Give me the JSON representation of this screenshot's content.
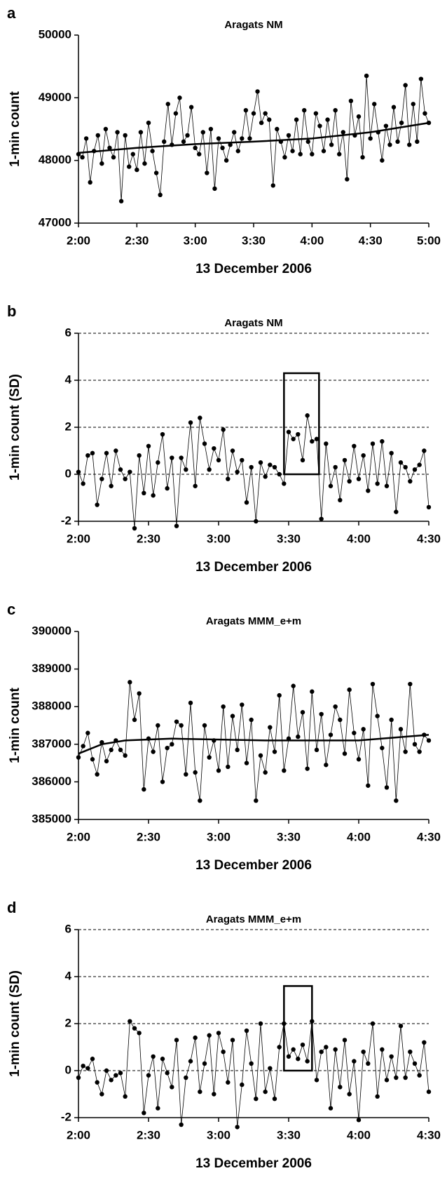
{
  "chart_data": [
    {
      "type": "line",
      "panel": "a",
      "title": "Aragats NM",
      "x_label": "13 December 2006",
      "y_label": "1-min count",
      "xlim": [
        0,
        180
      ],
      "xticks": [
        {
          "value": 0,
          "label": "2:00"
        },
        {
          "value": 30,
          "label": "2:30"
        },
        {
          "value": 60,
          "label": "3:00"
        },
        {
          "value": 90,
          "label": "3:30"
        },
        {
          "value": 120,
          "label": "4:00"
        },
        {
          "value": 150,
          "label": "4:30"
        },
        {
          "value": 180,
          "label": "5:00"
        }
      ],
      "ylim": [
        47000,
        50000
      ],
      "yticks": [
        47000,
        48000,
        49000,
        50000
      ],
      "grid": false,
      "series": [
        {
          "color": "#000000",
          "markers": true,
          "line_width": 0.8,
          "x": [
            0,
            2,
            4,
            6,
            8,
            10,
            12,
            14,
            16,
            18,
            20,
            22,
            24,
            26,
            28,
            30,
            32,
            34,
            36,
            38,
            40,
            42,
            44,
            46,
            48,
            50,
            52,
            54,
            56,
            58,
            60,
            62,
            64,
            66,
            68,
            70,
            72,
            74,
            76,
            78,
            80,
            82,
            84,
            86,
            88,
            90,
            92,
            94,
            96,
            98,
            100,
            102,
            104,
            106,
            108,
            110,
            112,
            114,
            116,
            118,
            120,
            122,
            124,
            126,
            128,
            130,
            132,
            134,
            136,
            138,
            140,
            142,
            144,
            146,
            148,
            150,
            152,
            154,
            156,
            158,
            160,
            162,
            164,
            166,
            168,
            170,
            172,
            174,
            176,
            178,
            180
          ],
          "values": [
            48100,
            48050,
            48350,
            47650,
            48150,
            48400,
            47950,
            48500,
            48200,
            48050,
            48450,
            47350,
            48400,
            47900,
            48100,
            47850,
            48450,
            47950,
            48600,
            48150,
            47800,
            47450,
            48300,
            48900,
            48250,
            48750,
            49000,
            48300,
            48400,
            48850,
            48200,
            48100,
            48450,
            47800,
            48500,
            47550,
            48350,
            48200,
            48000,
            48250,
            48450,
            48150,
            48350,
            48800,
            48350,
            48750,
            49100,
            48600,
            48750,
            48650,
            47600,
            48500,
            48300,
            48050,
            48400,
            48150,
            48650,
            48100,
            48800,
            48300,
            48100,
            48750,
            48550,
            48150,
            48650,
            48250,
            48800,
            48100,
            48450,
            47700,
            48950,
            48400,
            48700,
            48050,
            49350,
            48350,
            48900,
            48450,
            48000,
            48550,
            48250,
            48850,
            48300,
            48600,
            49200,
            48250,
            48900,
            48300,
            49300,
            48750,
            48600
          ]
        },
        {
          "color": "#000000",
          "markers": false,
          "line_width": 2.5,
          "x": [
            0,
            30,
            60,
            90,
            120,
            150,
            180
          ],
          "values": [
            48120,
            48200,
            48260,
            48300,
            48350,
            48450,
            48600
          ]
        }
      ]
    },
    {
      "type": "line",
      "panel": "b",
      "title": "Aragats NM",
      "x_label": "13 December 2006",
      "y_label": "1-min count (SD)",
      "xlim": [
        0,
        150
      ],
      "xticks": [
        {
          "value": 0,
          "label": "2:00"
        },
        {
          "value": 30,
          "label": "2:30"
        },
        {
          "value": 60,
          "label": "3:00"
        },
        {
          "value": 90,
          "label": "3:30"
        },
        {
          "value": 120,
          "label": "4:00"
        },
        {
          "value": 150,
          "label": "4:30"
        }
      ],
      "ylim": [
        -2,
        6
      ],
      "yticks": [
        -2,
        0,
        2,
        4,
        6
      ],
      "grid": true,
      "highlight": {
        "x": [
          88,
          103
        ],
        "y": [
          0,
          4.3
        ]
      },
      "series": [
        {
          "color": "#000000",
          "markers": true,
          "line_width": 0.8,
          "x": [
            0,
            2,
            4,
            6,
            8,
            10,
            12,
            14,
            16,
            18,
            20,
            22,
            24,
            26,
            28,
            30,
            32,
            34,
            36,
            38,
            40,
            42,
            44,
            46,
            48,
            50,
            52,
            54,
            56,
            58,
            60,
            62,
            64,
            66,
            68,
            70,
            72,
            74,
            76,
            78,
            80,
            82,
            84,
            86,
            88,
            90,
            92,
            94,
            96,
            98,
            100,
            102,
            104,
            106,
            108,
            110,
            112,
            114,
            116,
            118,
            120,
            122,
            124,
            126,
            128,
            130,
            132,
            134,
            136,
            138,
            140,
            142,
            144,
            146,
            148,
            150
          ],
          "values": [
            0.1,
            -0.4,
            0.8,
            0.9,
            -1.3,
            -0.2,
            0.9,
            -0.5,
            1.0,
            0.2,
            -0.2,
            0.1,
            -2.3,
            0.8,
            -0.8,
            1.2,
            -0.9,
            0.5,
            1.7,
            -0.6,
            0.7,
            -2.2,
            0.7,
            0.2,
            2.2,
            -0.5,
            2.4,
            1.3,
            0.2,
            1.1,
            0.6,
            1.9,
            -0.2,
            1.0,
            0.1,
            0.6,
            -1.2,
            0.3,
            -2.0,
            0.5,
            -0.1,
            0.4,
            0.3,
            0.0,
            -0.4,
            1.8,
            1.5,
            1.7,
            0.6,
            2.5,
            1.4,
            1.5,
            -1.9,
            1.3,
            -0.5,
            0.3,
            -1.1,
            0.6,
            -0.3,
            1.2,
            -0.2,
            0.8,
            -0.7,
            1.3,
            -0.4,
            1.4,
            -0.5,
            0.9,
            -1.6,
            0.5,
            0.3,
            -0.3,
            0.2,
            0.4,
            1.0,
            -1.4
          ]
        }
      ]
    },
    {
      "type": "line",
      "panel": "c",
      "title": "Aragats MMM_e+m",
      "x_label": "13 December 2006",
      "y_label": "1-min count",
      "xlim": [
        0,
        150
      ],
      "xticks": [
        {
          "value": 0,
          "label": "2:00"
        },
        {
          "value": 30,
          "label": "2:30"
        },
        {
          "value": 60,
          "label": "3:00"
        },
        {
          "value": 90,
          "label": "3:30"
        },
        {
          "value": 120,
          "label": "4:00"
        },
        {
          "value": 150,
          "label": "4:30"
        }
      ],
      "ylim": [
        385000,
        390000
      ],
      "yticks": [
        385000,
        386000,
        387000,
        388000,
        389000,
        390000
      ],
      "grid": false,
      "series": [
        {
          "color": "#000000",
          "markers": true,
          "line_width": 0.8,
          "x": [
            0,
            2,
            4,
            6,
            8,
            10,
            12,
            14,
            16,
            18,
            20,
            22,
            24,
            26,
            28,
            30,
            32,
            34,
            36,
            38,
            40,
            42,
            44,
            46,
            48,
            50,
            52,
            54,
            56,
            58,
            60,
            62,
            64,
            66,
            68,
            70,
            72,
            74,
            76,
            78,
            80,
            82,
            84,
            86,
            88,
            90,
            92,
            94,
            96,
            98,
            100,
            102,
            104,
            106,
            108,
            110,
            112,
            114,
            116,
            118,
            120,
            122,
            124,
            126,
            128,
            130,
            132,
            134,
            136,
            138,
            140,
            142,
            144,
            146,
            148,
            150
          ],
          "values": [
            386650,
            386950,
            387300,
            386600,
            386200,
            387050,
            386550,
            386850,
            387100,
            386850,
            386700,
            388650,
            387650,
            388350,
            385800,
            387150,
            386800,
            387500,
            386000,
            386900,
            387000,
            387600,
            387500,
            386200,
            388100,
            386250,
            385500,
            387500,
            386650,
            387100,
            386300,
            388000,
            386400,
            387750,
            386850,
            388050,
            386500,
            387650,
            385500,
            386700,
            386250,
            387450,
            386800,
            388300,
            386300,
            387150,
            388550,
            387200,
            387850,
            386350,
            388400,
            386850,
            387800,
            386450,
            387250,
            388000,
            387650,
            386750,
            388450,
            387300,
            386600,
            387400,
            385900,
            388600,
            387750,
            386900,
            385850,
            387650,
            385500,
            387400,
            386800,
            388600,
            387000,
            386800,
            387250,
            387100
          ]
        },
        {
          "color": "#000000",
          "markers": false,
          "line_width": 2.5,
          "x": [
            0,
            10,
            20,
            40,
            80,
            120,
            150
          ],
          "values": [
            386750,
            387000,
            387100,
            387150,
            387100,
            387100,
            387250
          ]
        }
      ]
    },
    {
      "type": "line",
      "panel": "d",
      "title": "Aragats MMM_e+m",
      "x_label": "13 December 2006",
      "y_label": "1-min count (SD)",
      "xlim": [
        0,
        150
      ],
      "xticks": [
        {
          "value": 0,
          "label": "2:00"
        },
        {
          "value": 30,
          "label": "2:30"
        },
        {
          "value": 60,
          "label": "3:00"
        },
        {
          "value": 90,
          "label": "3:30"
        },
        {
          "value": 120,
          "label": "4:00"
        },
        {
          "value": 150,
          "label": "4:30"
        }
      ],
      "ylim": [
        -2,
        6
      ],
      "yticks": [
        -2,
        0,
        2,
        4,
        6
      ],
      "grid": true,
      "highlight": {
        "x": [
          88,
          100
        ],
        "y": [
          0,
          3.6
        ]
      },
      "series": [
        {
          "color": "#000000",
          "markers": true,
          "line_width": 0.8,
          "x": [
            0,
            2,
            4,
            6,
            8,
            10,
            12,
            14,
            16,
            18,
            20,
            22,
            24,
            26,
            28,
            30,
            32,
            34,
            36,
            38,
            40,
            42,
            44,
            46,
            48,
            50,
            52,
            54,
            56,
            58,
            60,
            62,
            64,
            66,
            68,
            70,
            72,
            74,
            76,
            78,
            80,
            82,
            84,
            86,
            88,
            90,
            92,
            94,
            96,
            98,
            100,
            102,
            104,
            106,
            108,
            110,
            112,
            114,
            116,
            118,
            120,
            122,
            124,
            126,
            128,
            130,
            132,
            134,
            136,
            138,
            140,
            142,
            144,
            146,
            148,
            150
          ],
          "values": [
            -0.3,
            0.2,
            0.1,
            0.5,
            -0.5,
            -1.0,
            0.0,
            -0.4,
            -0.2,
            -0.1,
            -1.1,
            2.1,
            1.8,
            1.6,
            -1.8,
            -0.2,
            0.6,
            -1.6,
            0.5,
            -0.1,
            -0.7,
            1.3,
            -2.3,
            -0.3,
            0.4,
            1.4,
            -0.9,
            0.3,
            1.5,
            -1.0,
            1.6,
            0.8,
            -0.5,
            1.3,
            -2.4,
            -0.6,
            1.7,
            0.3,
            -1.2,
            2.0,
            -0.9,
            0.1,
            -1.2,
            1.0,
            2.0,
            0.6,
            0.9,
            0.5,
            1.1,
            0.4,
            2.1,
            -0.4,
            0.8,
            1.0,
            -1.6,
            0.9,
            -0.7,
            1.3,
            -1.0,
            0.4,
            -2.1,
            0.8,
            0.3,
            2.0,
            -1.1,
            0.9,
            -0.4,
            0.6,
            -0.3,
            1.9,
            -0.3,
            0.8,
            0.3,
            -0.2,
            1.2,
            -0.9
          ]
        }
      ]
    }
  ]
}
